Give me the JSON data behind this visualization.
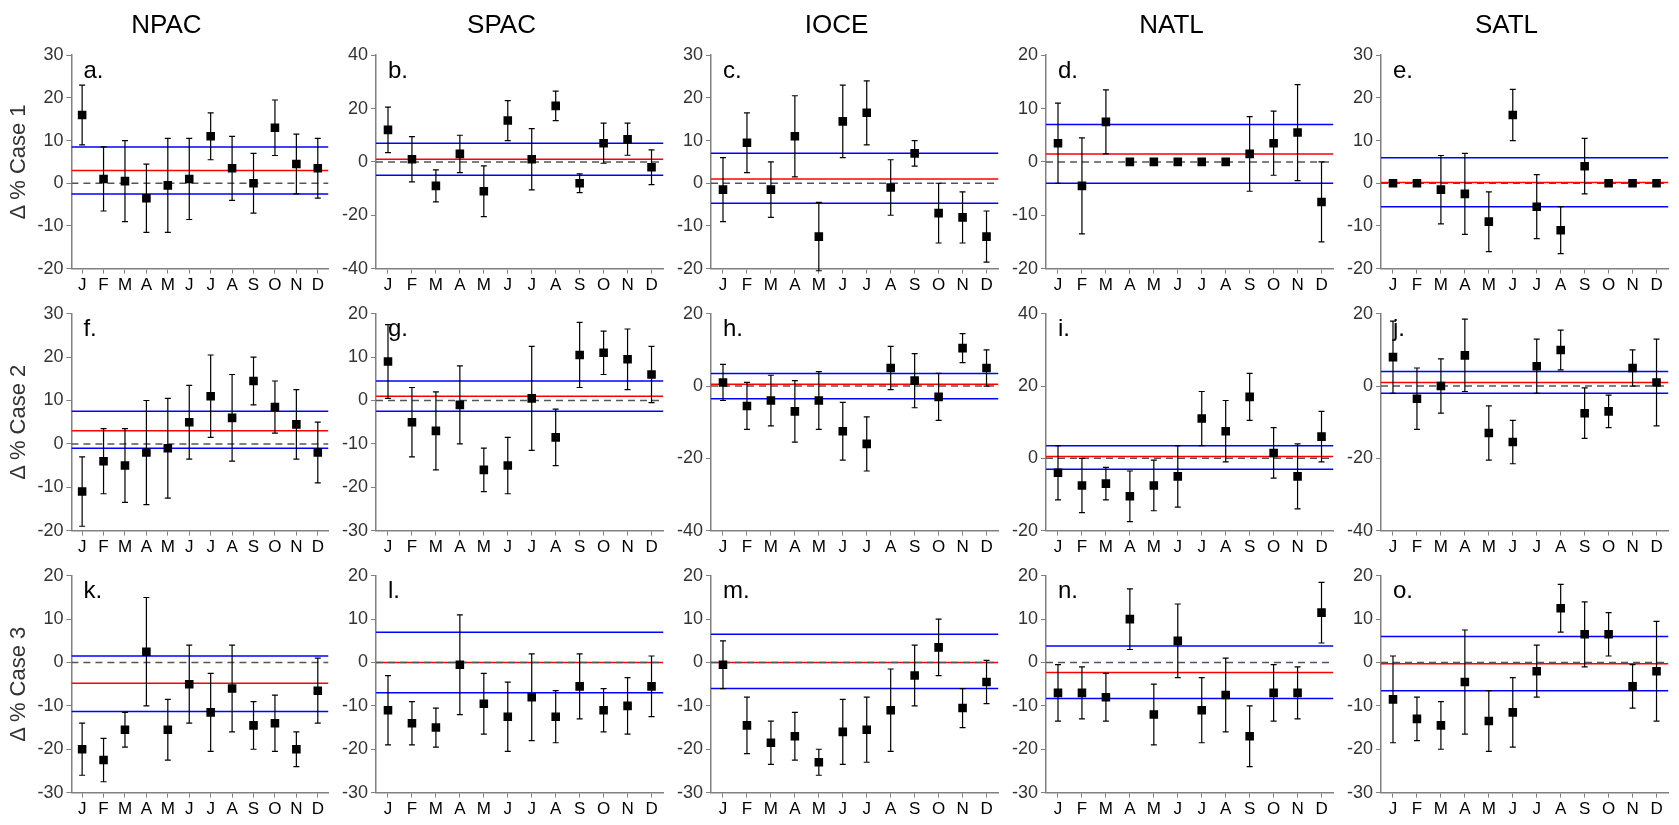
{
  "chart_data": [
    {
      "type": "scatter",
      "title": "NPAC",
      "ylabel": "Δ % Case 1",
      "annotations": [
        "a."
      ],
      "categories": [
        "J",
        "F",
        "M",
        "A",
        "M",
        "J",
        "J",
        "A",
        "S",
        "O",
        "N",
        "D"
      ],
      "color": "#000000",
      "marker": "square",
      "values": [
        16,
        1,
        0.5,
        -3.5,
        -0.5,
        1,
        11,
        3.5,
        0,
        13,
        4.5,
        3.5
      ],
      "errors": [
        7,
        7.5,
        9.5,
        8,
        11,
        9.5,
        5.5,
        7.5,
        7,
        6.5,
        7,
        7
      ],
      "ylim": [
        -20,
        30
      ],
      "yticks": [
        -20,
        -10,
        0,
        10,
        20,
        30
      ],
      "ref_lines": [
        {
          "axis": "y",
          "value": 8.5,
          "color": "#0000ff"
        },
        {
          "axis": "y",
          "value": -2.5,
          "color": "#0000ff"
        },
        {
          "axis": "y",
          "value": 3,
          "color": "#ff0000"
        },
        {
          "axis": "y",
          "value": 0,
          "color": "#555555",
          "line_style": "dashed"
        }
      ]
    },
    {
      "type": "scatter",
      "title": "SPAC",
      "annotations": [
        "b."
      ],
      "categories": [
        "J",
        "F",
        "M",
        "A",
        "M",
        "J",
        "J",
        "A",
        "S",
        "O",
        "N",
        "D"
      ],
      "color": "#000000",
      "marker": "square",
      "values": [
        12,
        1,
        -9,
        3,
        -11,
        15.5,
        1,
        21,
        -8,
        7,
        8.5,
        -2
      ],
      "errors": [
        8.5,
        8.5,
        6,
        7,
        9.5,
        7.5,
        11.5,
        5.5,
        3.5,
        7.5,
        6,
        6.5
      ],
      "ylim": [
        -40,
        40
      ],
      "yticks": [
        -40,
        -20,
        0,
        20,
        40
      ],
      "ref_lines": [
        {
          "axis": "y",
          "value": 7,
          "color": "#0000ff"
        },
        {
          "axis": "y",
          "value": -5,
          "color": "#0000ff"
        },
        {
          "axis": "y",
          "value": 1,
          "color": "#ff0000"
        },
        {
          "axis": "y",
          "value": 0,
          "color": "#555555",
          "line_style": "dashed"
        }
      ]
    },
    {
      "type": "scatter",
      "title": "IOCE",
      "annotations": [
        "c."
      ],
      "categories": [
        "J",
        "F",
        "M",
        "A",
        "M",
        "J",
        "J",
        "A",
        "S",
        "O",
        "N",
        "D"
      ],
      "color": "#000000",
      "marker": "square",
      "values": [
        -1.5,
        9.5,
        -1.5,
        11,
        -12.5,
        14.5,
        16.5,
        -1,
        7,
        -7,
        -8,
        -12.5
      ],
      "errors": [
        7.5,
        7,
        6.5,
        9.5,
        8,
        8.5,
        7.5,
        6.5,
        3,
        7,
        6,
        6
      ],
      "ylim": [
        -20,
        30
      ],
      "yticks": [
        -20,
        -10,
        0,
        10,
        20,
        30
      ],
      "ref_lines": [
        {
          "axis": "y",
          "value": 7,
          "color": "#0000ff"
        },
        {
          "axis": "y",
          "value": -4.7,
          "color": "#0000ff"
        },
        {
          "axis": "y",
          "value": 1,
          "color": "#ff0000"
        },
        {
          "axis": "y",
          "value": 0,
          "color": "#555555",
          "line_style": "dashed"
        }
      ]
    },
    {
      "type": "scatter",
      "title": "NATL",
      "annotations": [
        "d."
      ],
      "categories": [
        "J",
        "F",
        "M",
        "A",
        "M",
        "J",
        "J",
        "A",
        "S",
        "O",
        "N",
        "D"
      ],
      "color": "#000000",
      "marker": "square",
      "values": [
        3.5,
        -4.5,
        7.5,
        0,
        0,
        0,
        0,
        0,
        1.5,
        3.5,
        5.5,
        -7.5
      ],
      "errors": [
        7.5,
        9,
        6,
        null,
        null,
        null,
        null,
        null,
        7,
        6,
        9,
        7.5
      ],
      "ylim": [
        -20,
        20
      ],
      "yticks": [
        -20,
        -10,
        0,
        10,
        20
      ],
      "ref_lines": [
        {
          "axis": "y",
          "value": 7,
          "color": "#0000ff"
        },
        {
          "axis": "y",
          "value": -4,
          "color": "#0000ff"
        },
        {
          "axis": "y",
          "value": 1.5,
          "color": "#ff0000"
        },
        {
          "axis": "y",
          "value": 0,
          "color": "#555555",
          "line_style": "dashed"
        }
      ]
    },
    {
      "type": "scatter",
      "title": "SATL",
      "annotations": [
        "e."
      ],
      "categories": [
        "J",
        "F",
        "M",
        "A",
        "M",
        "J",
        "J",
        "A",
        "S",
        "O",
        "N",
        "D"
      ],
      "color": "#000000",
      "marker": "square",
      "values": [
        0,
        0,
        -1.5,
        -2.5,
        -9,
        16,
        -5.5,
        -11,
        4,
        0,
        0,
        0
      ],
      "errors": [
        null,
        null,
        8,
        9.5,
        7,
        6,
        7.5,
        5.5,
        6.5,
        null,
        null,
        null
      ],
      "ylim": [
        -20,
        30
      ],
      "yticks": [
        -20,
        -10,
        0,
        10,
        20,
        30
      ],
      "ref_lines": [
        {
          "axis": "y",
          "value": 6,
          "color": "#0000ff"
        },
        {
          "axis": "y",
          "value": -5.5,
          "color": "#0000ff"
        },
        {
          "axis": "y",
          "value": 0,
          "color": "#555555",
          "line_style": "dashed"
        },
        {
          "axis": "y",
          "value": 0.2,
          "color": "#ff0000"
        }
      ]
    },
    {
      "type": "scatter",
      "ylabel": "Δ % Case 2",
      "annotations": [
        "f."
      ],
      "categories": [
        "J",
        "F",
        "M",
        "A",
        "M",
        "J",
        "J",
        "A",
        "S",
        "O",
        "N",
        "D"
      ],
      "color": "#000000",
      "marker": "square",
      "values": [
        -11,
        -4,
        -5,
        -2,
        -1,
        5,
        11,
        6,
        14.5,
        8.5,
        4.5,
        -2
      ],
      "errors": [
        8,
        7.5,
        8.5,
        12,
        11.5,
        8.5,
        9.5,
        10,
        5.5,
        6,
        8,
        7
      ],
      "ylim": [
        -20,
        30
      ],
      "yticks": [
        -20,
        -10,
        0,
        10,
        20,
        30
      ],
      "ref_lines": [
        {
          "axis": "y",
          "value": 7.5,
          "color": "#0000ff"
        },
        {
          "axis": "y",
          "value": -1,
          "color": "#0000ff"
        },
        {
          "axis": "y",
          "value": 3,
          "color": "#ff0000"
        },
        {
          "axis": "y",
          "value": 0,
          "color": "#555555",
          "line_style": "dashed"
        }
      ]
    },
    {
      "type": "scatter",
      "annotations": [
        "g."
      ],
      "categories": [
        "J",
        "F",
        "M",
        "A",
        "M",
        "J",
        "J",
        "A",
        "S",
        "O",
        "N",
        "D"
      ],
      "color": "#000000",
      "marker": "square",
      "values": [
        9,
        -5,
        -7,
        -1,
        -16,
        -15,
        0.5,
        -8.5,
        10.5,
        11,
        9.5,
        6
      ],
      "errors": [
        8.5,
        8,
        9,
        9,
        5,
        6.5,
        12,
        6.5,
        7.5,
        5,
        7,
        6.5
      ],
      "ylim": [
        -30,
        20
      ],
      "yticks": [
        -30,
        -20,
        -10,
        0,
        10,
        20
      ],
      "ref_lines": [
        {
          "axis": "y",
          "value": 4.5,
          "color": "#0000ff"
        },
        {
          "axis": "y",
          "value": -2.5,
          "color": "#0000ff"
        },
        {
          "axis": "y",
          "value": 1,
          "color": "#ff0000"
        },
        {
          "axis": "y",
          "value": 0,
          "color": "#555555",
          "line_style": "dashed"
        }
      ]
    },
    {
      "type": "scatter",
      "annotations": [
        "h."
      ],
      "categories": [
        "J",
        "F",
        "M",
        "A",
        "M",
        "J",
        "J",
        "A",
        "S",
        "O",
        "N",
        "D"
      ],
      "color": "#000000",
      "marker": "square",
      "values": [
        1,
        -5.5,
        -4,
        -7,
        -4,
        -12.5,
        -16,
        5,
        1.5,
        -3,
        10.5,
        5
      ],
      "errors": [
        5,
        6.5,
        7,
        8.5,
        8,
        8,
        7.5,
        6,
        7.5,
        6.5,
        4,
        5
      ],
      "ylim": [
        -40,
        20
      ],
      "yticks": [
        -40,
        -20,
        0,
        20
      ],
      "ref_lines": [
        {
          "axis": "y",
          "value": 3.5,
          "color": "#0000ff"
        },
        {
          "axis": "y",
          "value": -3.5,
          "color": "#0000ff"
        },
        {
          "axis": "y",
          "value": 0,
          "color": "#555555",
          "line_style": "dashed"
        },
        {
          "axis": "y",
          "value": 0.5,
          "color": "#ff0000"
        }
      ]
    },
    {
      "type": "scatter",
      "annotations": [
        "i."
      ],
      "categories": [
        "J",
        "F",
        "M",
        "A",
        "M",
        "J",
        "J",
        "A",
        "S",
        "O",
        "N",
        "D"
      ],
      "color": "#000000",
      "marker": "square",
      "values": [
        -4,
        -7.5,
        -7,
        -10.5,
        -7.5,
        -5,
        11,
        7.5,
        17,
        1.5,
        -5,
        6
      ],
      "errors": [
        7.5,
        7.5,
        4.5,
        7,
        7,
        8.5,
        7.5,
        8.5,
        6.5,
        7,
        9,
        7
      ],
      "ylim": [
        -20,
        40
      ],
      "yticks": [
        -20,
        0,
        20,
        40
      ],
      "ref_lines": [
        {
          "axis": "y",
          "value": 3.5,
          "color": "#0000ff"
        },
        {
          "axis": "y",
          "value": -3,
          "color": "#0000ff"
        },
        {
          "axis": "y",
          "value": 0,
          "color": "#555555",
          "line_style": "dashed"
        },
        {
          "axis": "y",
          "value": 0.5,
          "color": "#ff0000"
        }
      ]
    },
    {
      "type": "scatter",
      "annotations": [
        "j."
      ],
      "categories": [
        "J",
        "F",
        "M",
        "A",
        "M",
        "J",
        "J",
        "A",
        "S",
        "O",
        "N",
        "D"
      ],
      "color": "#000000",
      "marker": "square",
      "values": [
        8,
        -3.5,
        0,
        8.5,
        -13,
        -15.5,
        5.5,
        10,
        -7.5,
        -7,
        5,
        1
      ],
      "errors": [
        10,
        8.5,
        7.5,
        10,
        7.5,
        6,
        7.5,
        5.5,
        7,
        4.5,
        5,
        12
      ],
      "ylim": [
        -40,
        20
      ],
      "yticks": [
        -40,
        -20,
        0,
        20
      ],
      "ref_lines": [
        {
          "axis": "y",
          "value": 4,
          "color": "#0000ff"
        },
        {
          "axis": "y",
          "value": -2,
          "color": "#0000ff"
        },
        {
          "axis": "y",
          "value": 1,
          "color": "#ff0000"
        },
        {
          "axis": "y",
          "value": 0,
          "color": "#555555",
          "line_style": "dashed"
        }
      ]
    },
    {
      "type": "scatter",
      "ylabel": "Δ % Case 3",
      "annotations": [
        "k."
      ],
      "categories": [
        "J",
        "F",
        "M",
        "A",
        "M",
        "J",
        "J",
        "A",
        "S",
        "O",
        "N",
        "D"
      ],
      "color": "#000000",
      "marker": "square",
      "values": [
        -20,
        -22.5,
        -15.5,
        2.5,
        -15.5,
        -5,
        -11.5,
        -6,
        -14.5,
        -14,
        -20,
        -6.5
      ],
      "errors": [
        6,
        5,
        4,
        12.5,
        7,
        9,
        9,
        10,
        5.5,
        6.5,
        4,
        7.5
      ],
      "ylim": [
        -30,
        20
      ],
      "yticks": [
        -30,
        -20,
        -10,
        0,
        10,
        20
      ],
      "ref_lines": [
        {
          "axis": "y",
          "value": 1.5,
          "color": "#0000ff"
        },
        {
          "axis": "y",
          "value": -11.3,
          "color": "#0000ff"
        },
        {
          "axis": "y",
          "value": -4.8,
          "color": "#ff0000"
        },
        {
          "axis": "y",
          "value": 0,
          "color": "#555555",
          "line_style": "dashed"
        }
      ]
    },
    {
      "type": "scatter",
      "annotations": [
        "l."
      ],
      "categories": [
        "J",
        "F",
        "M",
        "A",
        "M",
        "J",
        "J",
        "A",
        "S",
        "O",
        "N",
        "D"
      ],
      "color": "#000000",
      "marker": "square",
      "values": [
        -11,
        -14,
        -15,
        -0.5,
        -9.5,
        -12.5,
        -8,
        -12.5,
        -5.5,
        -11,
        -10,
        -5.5
      ],
      "errors": [
        8,
        5,
        4.5,
        11.5,
        7,
        8,
        10,
        6,
        7.5,
        5,
        6.5,
        7
      ],
      "ylim": [
        -30,
        20
      ],
      "yticks": [
        -30,
        -20,
        -10,
        0,
        10,
        20
      ],
      "ref_lines": [
        {
          "axis": "y",
          "value": 7,
          "color": "#0000ff"
        },
        {
          "axis": "y",
          "value": -7,
          "color": "#0000ff"
        },
        {
          "axis": "y",
          "value": 0,
          "color": "#ff0000"
        },
        {
          "axis": "y",
          "value": 0,
          "color": "#555555",
          "line_style": "dashed"
        }
      ]
    },
    {
      "type": "scatter",
      "annotations": [
        "m."
      ],
      "categories": [
        "J",
        "F",
        "M",
        "A",
        "M",
        "J",
        "J",
        "A",
        "S",
        "O",
        "N",
        "D"
      ],
      "color": "#000000",
      "marker": "square",
      "values": [
        -0.5,
        -14.5,
        -18.5,
        -17,
        -23,
        -16,
        -15.5,
        -11,
        -3,
        3.5,
        -10.5,
        -4.5
      ],
      "errors": [
        5.5,
        6.5,
        5,
        5.5,
        3,
        7.5,
        7.5,
        9.5,
        7,
        6.5,
        4.5,
        5
      ],
      "ylim": [
        -30,
        20
      ],
      "yticks": [
        -30,
        -20,
        -10,
        0,
        10,
        20
      ],
      "ref_lines": [
        {
          "axis": "y",
          "value": 6.5,
          "color": "#0000ff"
        },
        {
          "axis": "y",
          "value": -6,
          "color": "#0000ff"
        },
        {
          "axis": "y",
          "value": 0,
          "color": "#ff0000"
        },
        {
          "axis": "y",
          "value": 0,
          "color": "#555555",
          "line_style": "dashed"
        }
      ]
    },
    {
      "type": "scatter",
      "annotations": [
        "n."
      ],
      "categories": [
        "J",
        "F",
        "M",
        "A",
        "M",
        "J",
        "J",
        "A",
        "S",
        "O",
        "N",
        "D"
      ],
      "color": "#000000",
      "marker": "square",
      "values": [
        -7,
        -7,
        -8,
        10,
        -12,
        5,
        -11,
        -7.5,
        -17,
        -7,
        -7,
        11.5
      ],
      "errors": [
        6.5,
        6,
        5.5,
        7,
        7,
        8.5,
        7.5,
        8.5,
        7,
        6.5,
        6,
        7
      ],
      "ylim": [
        -30,
        20
      ],
      "yticks": [
        -30,
        -20,
        -10,
        0,
        10,
        20
      ],
      "ref_lines": [
        {
          "axis": "y",
          "value": 3.8,
          "color": "#0000ff"
        },
        {
          "axis": "y",
          "value": -8.3,
          "color": "#0000ff"
        },
        {
          "axis": "y",
          "value": -2.3,
          "color": "#ff0000"
        },
        {
          "axis": "y",
          "value": 0,
          "color": "#555555",
          "line_style": "dashed"
        }
      ]
    },
    {
      "type": "scatter",
      "annotations": [
        "o."
      ],
      "categories": [
        "J",
        "F",
        "M",
        "A",
        "M",
        "J",
        "J",
        "A",
        "S",
        "O",
        "N",
        "D"
      ],
      "color": "#000000",
      "marker": "square",
      "values": [
        -8.5,
        -13,
        -14.5,
        -4.5,
        -13.5,
        -11.5,
        -2,
        12.5,
        6.5,
        6.5,
        -5.5,
        -2
      ],
      "errors": [
        10,
        5,
        5.5,
        12,
        7,
        8,
        6,
        5.5,
        7.5,
        5,
        5,
        11.5
      ],
      "ylim": [
        -30,
        20
      ],
      "yticks": [
        -30,
        -20,
        -10,
        0,
        10,
        20
      ],
      "ref_lines": [
        {
          "axis": "y",
          "value": 6,
          "color": "#0000ff"
        },
        {
          "axis": "y",
          "value": -6.5,
          "color": "#0000ff"
        },
        {
          "axis": "y",
          "value": 0,
          "color": "#555555",
          "line_style": "dashed"
        },
        {
          "axis": "y",
          "value": -0.3,
          "color": "#ff0000"
        }
      ]
    }
  ]
}
